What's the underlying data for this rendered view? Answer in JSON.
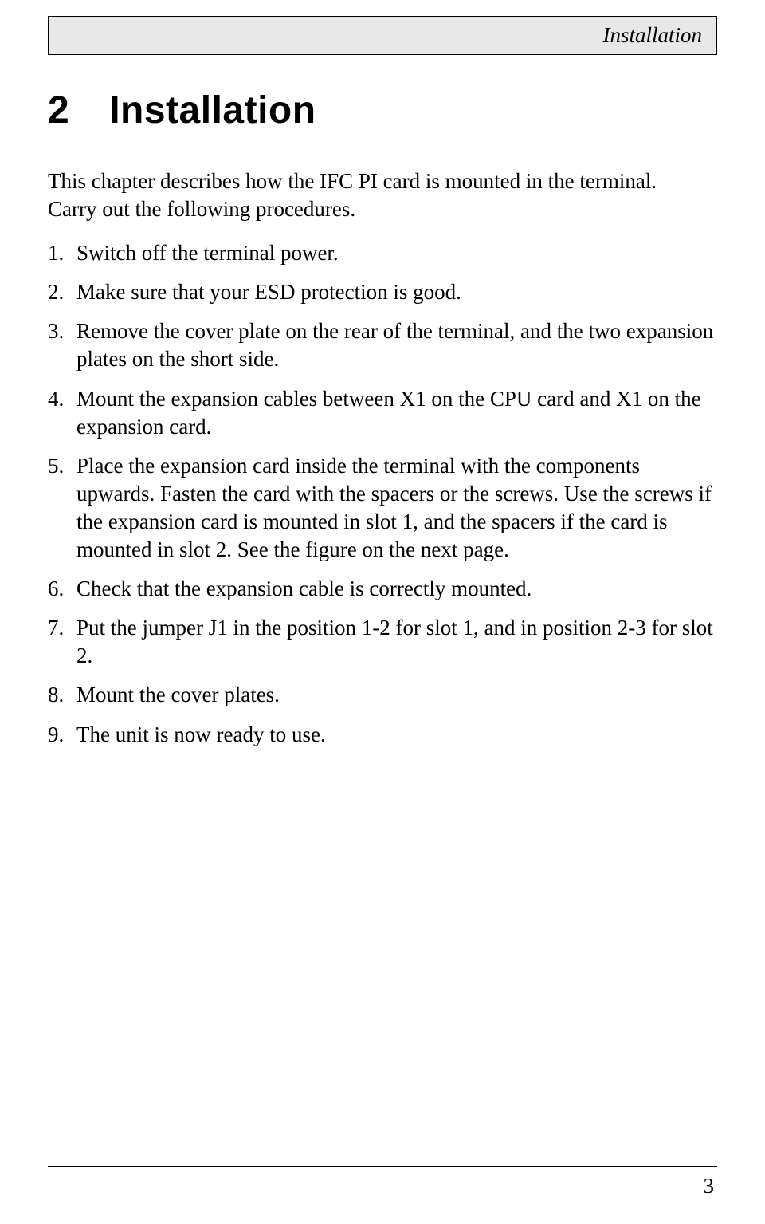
{
  "header": {
    "section_label": "Installation"
  },
  "chapter": {
    "number": "2",
    "title": "Installation"
  },
  "intro": {
    "line1": "This chapter describes how the IFC PI card is mounted in the terminal.",
    "line2": "Carry out the following procedures."
  },
  "steps": [
    {
      "num": "1.",
      "text": "Switch off the terminal power."
    },
    {
      "num": "2.",
      "text": "Make sure that your ESD protection is good."
    },
    {
      "num": "3.",
      "text": "Remove the cover plate on the rear of the terminal, and the two expansion plates on the short side."
    },
    {
      "num": "4.",
      "text": "Mount the expansion cables between X1 on the CPU card and X1 on the expansion card."
    },
    {
      "num": "5.",
      "text": "Place the expansion card inside the terminal with the components upwards. Fasten the card with the spacers or the screws. Use the screws if the expansion card is mounted in slot 1, and the spacers if the card is mounted in slot 2. See the figure on the next page."
    },
    {
      "num": "6.",
      "text": "Check that the expansion cable is correctly mounted."
    },
    {
      "num": "7.",
      "text": "Put the jumper J1 in the position 1-2 for slot 1, and in position 2-3 for slot 2."
    },
    {
      "num": "8.",
      "text": "Mount the cover plates."
    },
    {
      "num": "9.",
      "text": "The unit is now ready to use."
    }
  ],
  "footer": {
    "page_number": "3"
  }
}
